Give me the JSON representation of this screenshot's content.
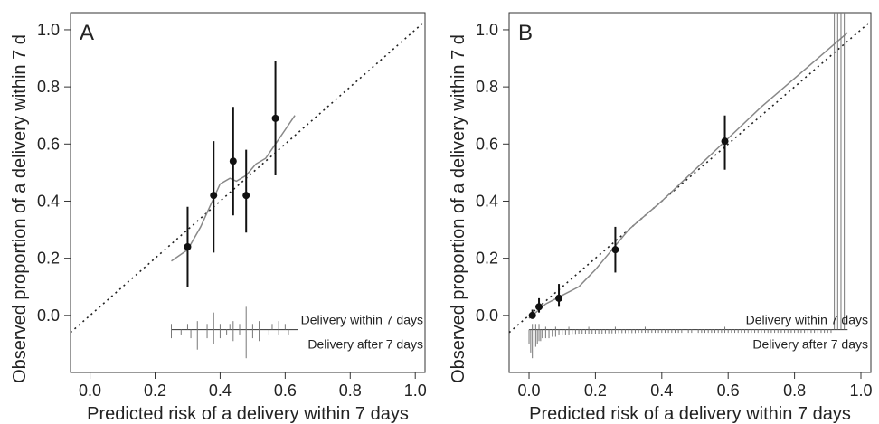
{
  "chart_data": [
    {
      "type": "scatter",
      "panel_label": "A",
      "xlabel": "Predicted risk of a delivery within 7 days",
      "ylabel": "Observed proportion of a delivery within 7 d",
      "xlim": [
        -0.06,
        1.03
      ],
      "ylim": [
        -0.2,
        1.06
      ],
      "x_ticks": [
        0.0,
        0.2,
        0.4,
        0.6,
        0.8,
        1.0
      ],
      "x_tick_labels": [
        "0.0",
        "0.2",
        "0.4",
        "0.6",
        "0.8",
        "1.0"
      ],
      "y_ticks": [
        0.0,
        0.2,
        0.4,
        0.6,
        0.8,
        1.0
      ],
      "y_tick_labels": [
        "0.0",
        "0.2",
        "0.4",
        "0.6",
        "0.8",
        "1.0"
      ],
      "grid": false,
      "points": [
        {
          "x": 0.3,
          "y": 0.24,
          "lo": 0.1,
          "hi": 0.38
        },
        {
          "x": 0.38,
          "y": 0.42,
          "lo": 0.22,
          "hi": 0.61
        },
        {
          "x": 0.44,
          "y": 0.54,
          "lo": 0.35,
          "hi": 0.73
        },
        {
          "x": 0.48,
          "y": 0.42,
          "lo": 0.29,
          "hi": 0.58
        },
        {
          "x": 0.57,
          "y": 0.69,
          "lo": 0.49,
          "hi": 0.89
        }
      ],
      "smooth_line": [
        [
          0.25,
          0.19
        ],
        [
          0.3,
          0.23
        ],
        [
          0.34,
          0.31
        ],
        [
          0.38,
          0.41
        ],
        [
          0.4,
          0.46
        ],
        [
          0.43,
          0.48
        ],
        [
          0.45,
          0.47
        ],
        [
          0.48,
          0.49
        ],
        [
          0.51,
          0.53
        ],
        [
          0.54,
          0.55
        ],
        [
          0.57,
          0.6
        ],
        [
          0.6,
          0.65
        ],
        [
          0.63,
          0.7
        ]
      ],
      "reference_line": "diagonal",
      "rug_labels": {
        "upper": "Delivery within 7 days",
        "lower": "Delivery after 7 days"
      },
      "rug_baseline": -0.05,
      "rug_x_range": [
        0.25,
        0.64
      ],
      "rug_up": [
        0.25,
        0.3,
        0.33,
        0.36,
        0.38,
        0.4,
        0.43,
        0.44,
        0.46,
        0.48,
        0.5,
        0.52,
        0.56,
        0.58,
        0.6
      ],
      "rug_up_len": [
        0.02,
        0.02,
        0.03,
        0.02,
        0.06,
        0.02,
        0.02,
        0.03,
        0.02,
        0.08,
        0.02,
        0.03,
        0.02,
        0.03,
        0.02
      ],
      "rug_down": [
        0.25,
        0.28,
        0.31,
        0.33,
        0.36,
        0.38,
        0.4,
        0.42,
        0.44,
        0.46,
        0.48,
        0.5,
        0.52,
        0.55,
        0.58,
        0.61
      ],
      "rug_down_len": [
        0.03,
        0.02,
        0.03,
        0.07,
        0.03,
        0.05,
        0.03,
        0.02,
        0.04,
        0.02,
        0.1,
        0.03,
        0.04,
        0.02,
        0.02,
        0.02
      ]
    },
    {
      "type": "scatter",
      "panel_label": "B",
      "xlabel": "Predicted risk of a delivery within 7 days",
      "ylabel": "Observed proportion of a delivery within 7 d",
      "xlim": [
        -0.06,
        1.03
      ],
      "ylim": [
        -0.2,
        1.06
      ],
      "x_ticks": [
        0.0,
        0.2,
        0.4,
        0.6,
        0.8,
        1.0
      ],
      "x_tick_labels": [
        "0.0",
        "0.2",
        "0.4",
        "0.6",
        "0.8",
        "1.0"
      ],
      "y_ticks": [
        0.0,
        0.2,
        0.4,
        0.6,
        0.8,
        1.0
      ],
      "y_tick_labels": [
        "0.0",
        "0.2",
        "0.4",
        "0.6",
        "0.8",
        "1.0"
      ],
      "grid": false,
      "points": [
        {
          "x": 0.01,
          "y": 0.0,
          "lo": -0.01,
          "hi": 0.02
        },
        {
          "x": 0.03,
          "y": 0.03,
          "lo": 0.01,
          "hi": 0.06
        },
        {
          "x": 0.09,
          "y": 0.06,
          "lo": 0.03,
          "hi": 0.11
        },
        {
          "x": 0.26,
          "y": 0.23,
          "lo": 0.15,
          "hi": 0.31
        },
        {
          "x": 0.59,
          "y": 0.61,
          "lo": 0.51,
          "hi": 0.7
        }
      ],
      "smooth_line": [
        [
          0.0,
          -0.01
        ],
        [
          0.05,
          0.04
        ],
        [
          0.1,
          0.07
        ],
        [
          0.15,
          0.1
        ],
        [
          0.2,
          0.16
        ],
        [
          0.25,
          0.23
        ],
        [
          0.3,
          0.3
        ],
        [
          0.4,
          0.4
        ],
        [
          0.5,
          0.51
        ],
        [
          0.6,
          0.62
        ],
        [
          0.7,
          0.73
        ],
        [
          0.8,
          0.83
        ],
        [
          0.9,
          0.93
        ],
        [
          0.96,
          0.99
        ]
      ],
      "reference_line": "diagonal",
      "rug_labels": {
        "upper": "Delivery within 7 days",
        "lower": "Delivery after 7 days"
      },
      "rug_baseline": -0.05,
      "rug_x_range": [
        0.0,
        0.96
      ],
      "rug_up": [
        0.01,
        0.02,
        0.03,
        0.05,
        0.08,
        0.12,
        0.18,
        0.26,
        0.35,
        0.59
      ],
      "rug_up_len": [
        0.02,
        0.02,
        0.02,
        0.01,
        0.01,
        0.01,
        0.01,
        0.01,
        0.01,
        0.01
      ],
      "rug_down": [
        0.0,
        0.005,
        0.01,
        0.015,
        0.02,
        0.025,
        0.03,
        0.035,
        0.04,
        0.05,
        0.06,
        0.07,
        0.08,
        0.09,
        0.1,
        0.11,
        0.12,
        0.13,
        0.14,
        0.15,
        0.16,
        0.17,
        0.18,
        0.19,
        0.2,
        0.21,
        0.22,
        0.23,
        0.24,
        0.25,
        0.26,
        0.27,
        0.28,
        0.29,
        0.3,
        0.31,
        0.32,
        0.33,
        0.34,
        0.35,
        0.36,
        0.37,
        0.38,
        0.39,
        0.4,
        0.41,
        0.42,
        0.43,
        0.44,
        0.45,
        0.46,
        0.47,
        0.48,
        0.49,
        0.5,
        0.51,
        0.52,
        0.53,
        0.54,
        0.55,
        0.56,
        0.57,
        0.58,
        0.59,
        0.6,
        0.61,
        0.62,
        0.63,
        0.64,
        0.65,
        0.66,
        0.67,
        0.68,
        0.69,
        0.7,
        0.71,
        0.72,
        0.73,
        0.74,
        0.75,
        0.76,
        0.77,
        0.78,
        0.79,
        0.8,
        0.81,
        0.82,
        0.83,
        0.84,
        0.85,
        0.86,
        0.87,
        0.88,
        0.89,
        0.9,
        0.91,
        0.92,
        0.93,
        0.94,
        0.95
      ],
      "rug_down_len": [
        0.05,
        0.08,
        0.1,
        0.07,
        0.06,
        0.05,
        0.04,
        0.04,
        0.03,
        0.03,
        0.03,
        0.025,
        0.025,
        0.02,
        0.02,
        0.02,
        0.02,
        0.018,
        0.018,
        0.016,
        0.016,
        0.015,
        0.015,
        0.015,
        0.014,
        0.014,
        0.014,
        0.013,
        0.013,
        0.013,
        0.013,
        0.012,
        0.012,
        0.012,
        0.012,
        0.012,
        0.012,
        0.011,
        0.011,
        0.011,
        0.011,
        0.011,
        0.011,
        0.011,
        0.011,
        0.011,
        0.011,
        0.011,
        0.011,
        0.011,
        0.011,
        0.011,
        0.011,
        0.011,
        0.011,
        0.011,
        0.011,
        0.011,
        0.011,
        0.011,
        0.011,
        0.011,
        0.011,
        0.011,
        0.011,
        0.011,
        0.011,
        0.011,
        0.011,
        0.011,
        0.011,
        0.011,
        0.011,
        0.011,
        0.011,
        0.011,
        0.011,
        0.011,
        0.011,
        0.011,
        0.011,
        0.011,
        0.011,
        0.011,
        0.011,
        0.011,
        0.011,
        0.011,
        0.011,
        0.011,
        0.011,
        0.011,
        0.011,
        0.011,
        0.011,
        0.011
      ]
    }
  ]
}
